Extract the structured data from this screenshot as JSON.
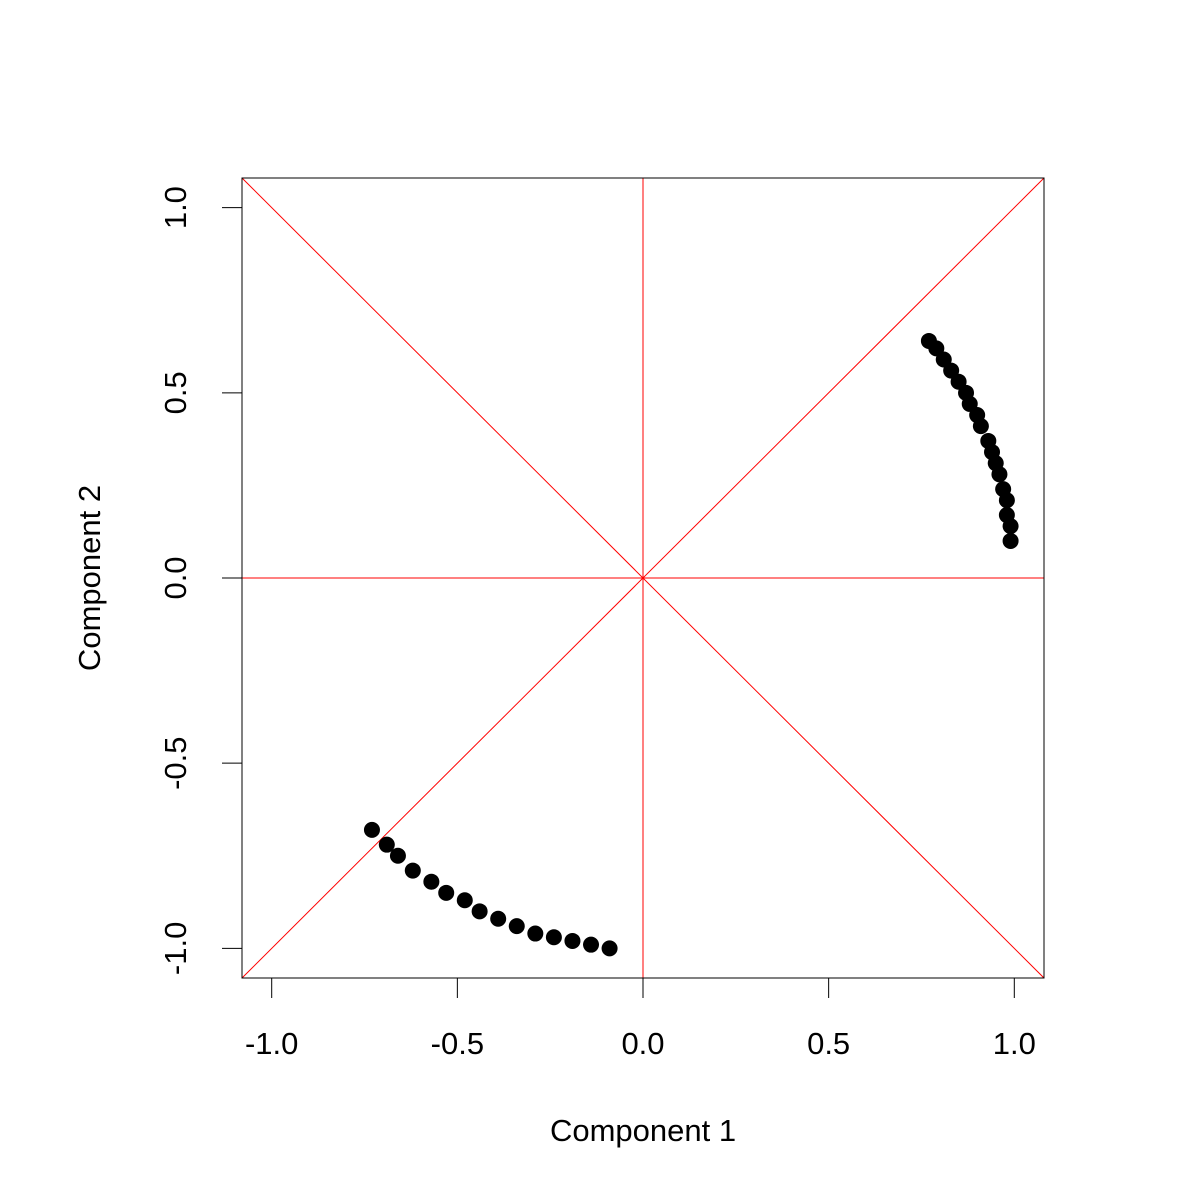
{
  "chart_data": {
    "type": "scatter",
    "x_label": "Component 1",
    "y_label": "Component 2",
    "color": "#000000",
    "x": [
      0.77,
      0.79,
      0.81,
      0.83,
      0.85,
      0.87,
      0.88,
      0.9,
      0.91,
      0.93,
      0.94,
      0.95,
      0.96,
      0.97,
      0.98,
      0.98,
      0.99,
      0.99,
      -0.73,
      -0.69,
      -0.66,
      -0.62,
      -0.57,
      -0.53,
      -0.48,
      -0.44,
      -0.39,
      -0.34,
      -0.29,
      -0.24,
      -0.19,
      -0.14,
      -0.09
    ],
    "y": [
      0.64,
      0.62,
      0.59,
      0.56,
      0.53,
      0.5,
      0.47,
      0.44,
      0.41,
      0.37,
      0.34,
      0.31,
      0.28,
      0.24,
      0.21,
      0.17,
      0.14,
      0.1,
      -0.68,
      -0.72,
      -0.75,
      -0.79,
      -0.82,
      -0.85,
      -0.87,
      -0.9,
      -0.92,
      -0.94,
      -0.96,
      -0.97,
      -0.98,
      -0.99,
      -1.0
    ],
    "xlim": [
      -1.08,
      1.08
    ],
    "ylim": [
      -1.08,
      1.08
    ],
    "xticks": [
      {
        "value": -1,
        "label": "-1.0"
      },
      {
        "value": -0.5,
        "label": "-0.5"
      },
      {
        "value": 0,
        "label": "0.0"
      },
      {
        "value": 0.5,
        "label": "0.5"
      },
      {
        "value": 1,
        "label": "1.0"
      }
    ],
    "yticks": [
      {
        "value": -1,
        "label": "-1.0"
      },
      {
        "value": -0.5,
        "label": "-0.5"
      },
      {
        "value": 0,
        "label": "0.0"
      },
      {
        "value": 0.5,
        "label": "0.5"
      },
      {
        "value": 1,
        "label": "1.0"
      }
    ],
    "reference_line_color": "#ff0000"
  }
}
